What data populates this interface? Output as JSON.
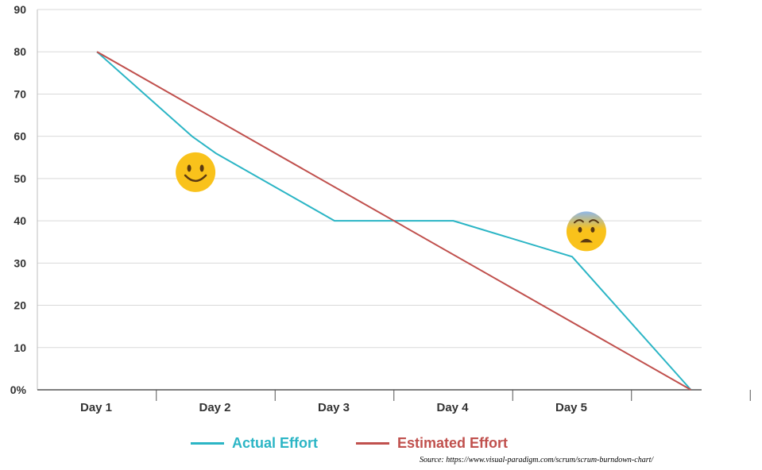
{
  "chart_data": {
    "type": "line",
    "categories": [
      "Day 1",
      "Day 2",
      "Day 3",
      "Day 4",
      "Day 5"
    ],
    "y_ticks": [
      "0%",
      "10",
      "20",
      "30",
      "40",
      "50",
      "60",
      "70",
      "80",
      "90"
    ],
    "ylim": [
      0,
      90
    ],
    "grid": true,
    "series": [
      {
        "name": "Actual Effort",
        "color": "#2bb5c5",
        "points": [
          [
            1,
            80
          ],
          [
            1.8,
            60
          ],
          [
            2,
            56
          ],
          [
            3,
            40
          ],
          [
            4,
            40
          ],
          [
            5,
            31.5
          ],
          [
            6,
            0
          ]
        ]
      },
      {
        "name": "Estimated Effort",
        "color": "#c0504d",
        "points": [
          [
            1,
            80
          ],
          [
            6,
            0
          ]
        ]
      }
    ],
    "annotations": [
      {
        "icon": "smiling-face-icon",
        "x": 1.83,
        "y": 51.5
      },
      {
        "icon": "anxious-face-icon",
        "x": 5.12,
        "y": 37.5
      }
    ]
  },
  "legend": {
    "actual_label": "Actual Effort",
    "estimated_label": "Estimated Effort",
    "actual_color": "#2bb5c5",
    "estimated_color": "#c0504d"
  },
  "source": "Source: https://www.visual-paradigm.com/scrum/scrum-burndown-chart/"
}
